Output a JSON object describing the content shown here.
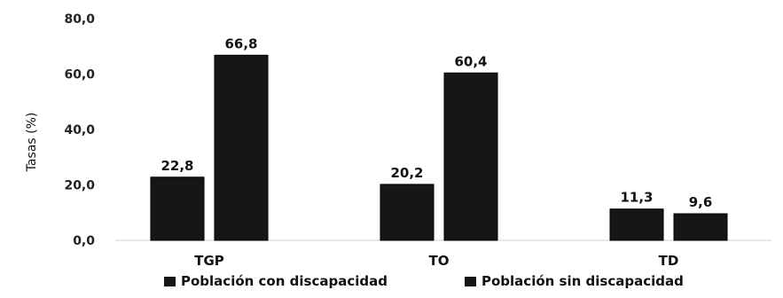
{
  "chart_data": {
    "type": "bar",
    "categories": [
      "TGP",
      "TO",
      "TD"
    ],
    "series": [
      {
        "name": "Población con discapacidad",
        "values": [
          22.8,
          20.2,
          11.3
        ],
        "labels": [
          "22,8",
          "20,2",
          "11,3"
        ]
      },
      {
        "name": "Población sin discapacidad",
        "values": [
          66.8,
          60.4,
          9.6
        ],
        "labels": [
          "66,8",
          "60,4",
          "9,6"
        ]
      }
    ],
    "ylabel": "Tasas (%)",
    "ylim": [
      0,
      80
    ],
    "yticks": [
      0,
      20,
      40,
      60,
      80
    ],
    "ytick_labels": [
      "0,0",
      "20,0",
      "40,0",
      "60,0",
      "80,0"
    ],
    "grid": false,
    "legend": "bottom",
    "colors": [
      "#161616",
      "#161616"
    ]
  }
}
